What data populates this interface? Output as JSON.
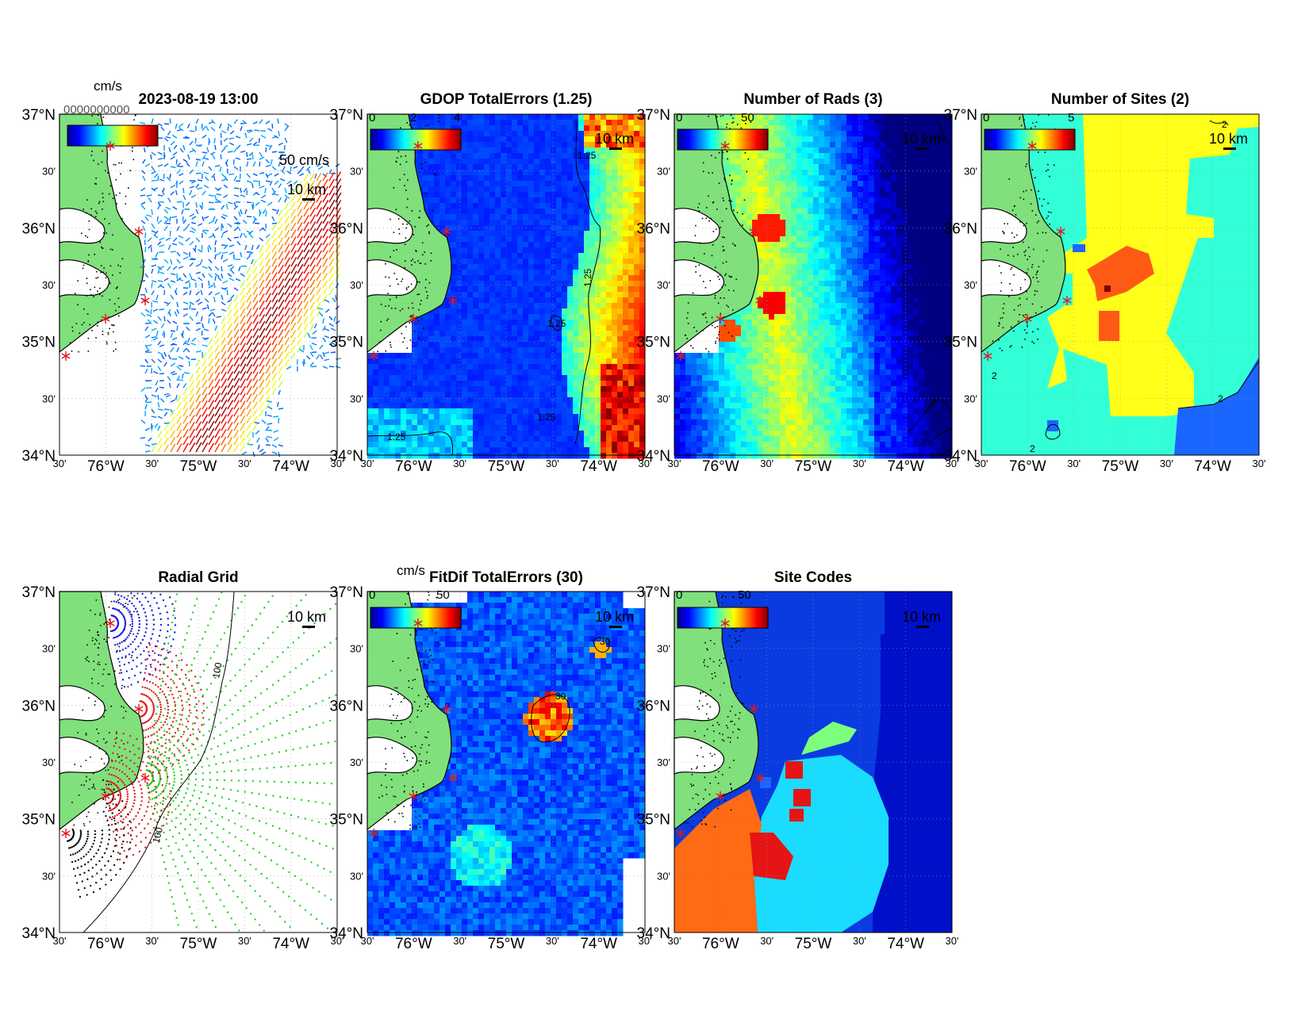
{
  "figure": {
    "timestamp": "2023-08-19 13:00",
    "vector_scale_label": "50 cm/s",
    "map_scale_label": "10 km",
    "lat_labels": [
      "37°N",
      "30'",
      "36°N",
      "30'",
      "35°N",
      "30'",
      "34°N"
    ],
    "lon_labels": [
      "30'",
      "76°W",
      "30'",
      "75°W",
      "30'",
      "74°W",
      "30'"
    ],
    "overlap_text": "0000000000"
  },
  "panels": [
    {
      "id": "vectors",
      "title": "2023-08-19 13:00",
      "colorbar_unit": "cm/s",
      "colorbar_ticks": [],
      "contour_labels": []
    },
    {
      "id": "gdop",
      "title": "GDOP TotalErrors (1.25)",
      "colorbar_unit": "",
      "colorbar_ticks": [
        "0",
        "2",
        "4"
      ],
      "contour_labels": [
        "1.25",
        "1.25",
        "1.25",
        "1.25",
        "1.25"
      ]
    },
    {
      "id": "nrads",
      "title": "Number of Rads (3)",
      "colorbar_unit": "",
      "colorbar_ticks": [
        "0",
        "50"
      ],
      "contour_labels": [
        "3",
        "3",
        "3"
      ]
    },
    {
      "id": "nsites",
      "title": "Number of Sites (2)",
      "colorbar_unit": "",
      "colorbar_ticks": [
        "0",
        "5"
      ],
      "contour_labels": [
        "2",
        "2",
        "2",
        "2"
      ]
    },
    {
      "id": "radial",
      "title": "Radial Grid",
      "colorbar_unit": "",
      "colorbar_ticks": [],
      "contour_labels": [
        "100",
        "100"
      ]
    },
    {
      "id": "fitdif",
      "title": "FitDif TotalErrors (30)",
      "colorbar_unit": "cm/s",
      "colorbar_ticks": [
        "0",
        "50"
      ],
      "contour_labels": [
        "30",
        "30"
      ]
    },
    {
      "id": "sitecodes",
      "title": "Site Codes",
      "colorbar_unit": "",
      "colorbar_ticks": [
        "0",
        "50"
      ],
      "contour_labels": []
    }
  ],
  "colors": {
    "land": "#80e07c",
    "site_marker": "#e01818",
    "radial_site_colors": [
      "#1a1ae6",
      "#e61a1a",
      "#1ad61a",
      "#e61a1a",
      "#111111"
    ]
  },
  "icons": {
    "site_marker": "red-asterisk-icon",
    "scale_bar": "black-bar-icon"
  }
}
